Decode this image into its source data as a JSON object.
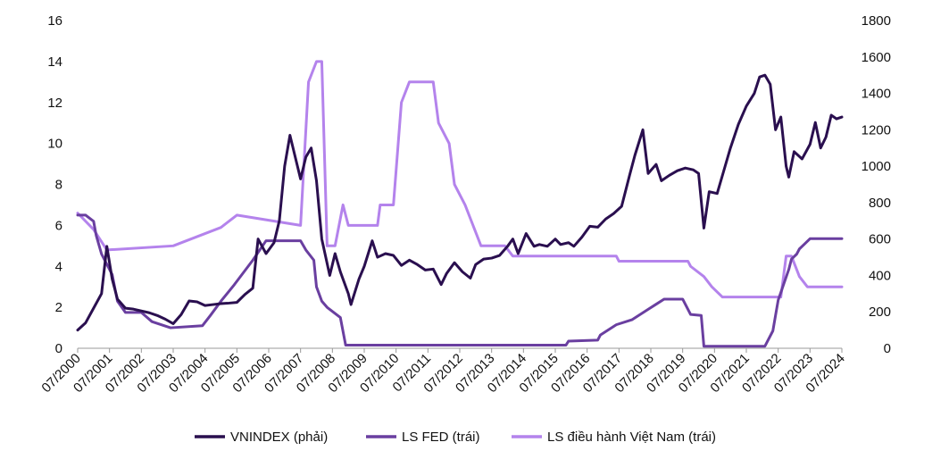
{
  "chart_data": {
    "type": "line",
    "title": "",
    "xlabel": "",
    "ylabel_left": "",
    "ylabel_right": "",
    "y_left_lim": [
      0,
      16
    ],
    "y_left_ticks": [
      "0",
      "2",
      "4",
      "6",
      "8",
      "10",
      "12",
      "14",
      "16"
    ],
    "y_right_lim": [
      0,
      1800
    ],
    "y_right_ticks": [
      "0",
      "200",
      "400",
      "600",
      "800",
      "1000",
      "1200",
      "1400",
      "1600",
      "1800"
    ],
    "x_ticks": [
      "07/2000",
      "07/2001",
      "07/2002",
      "07/2003",
      "07/2004",
      "07/2005",
      "07/2006",
      "07/2007",
      "07/2008",
      "07/2009",
      "07/2010",
      "07/2011",
      "07/2012",
      "07/2013",
      "07/2014",
      "07/2015",
      "07/2016",
      "07/2017",
      "07/2018",
      "07/2019",
      "07/2020",
      "07/2021",
      "07/2022",
      "07/2023",
      "07/2024"
    ],
    "x_range": [
      "2000-07",
      "2024-07"
    ],
    "grid": false,
    "legend_position": "bottom",
    "series": [
      {
        "name": "VNINDEX (phải)",
        "axis": "right",
        "color": "#2a0f4f",
        "points": [
          [
            "2000-07",
            100
          ],
          [
            "2000-10",
            140
          ],
          [
            "2001-01",
            220
          ],
          [
            "2001-04",
            300
          ],
          [
            "2001-06",
            560
          ],
          [
            "2001-08",
            380
          ],
          [
            "2001-10",
            270
          ],
          [
            "2002-01",
            220
          ],
          [
            "2002-04",
            215
          ],
          [
            "2002-07",
            205
          ],
          [
            "2002-10",
            195
          ],
          [
            "2003-01",
            180
          ],
          [
            "2003-04",
            160
          ],
          [
            "2003-07",
            135
          ],
          [
            "2003-10",
            185
          ],
          [
            "2004-01",
            260
          ],
          [
            "2004-04",
            255
          ],
          [
            "2004-07",
            235
          ],
          [
            "2004-10",
            240
          ],
          [
            "2005-01",
            245
          ],
          [
            "2005-04",
            248
          ],
          [
            "2005-07",
            252
          ],
          [
            "2005-10",
            295
          ],
          [
            "2006-01",
            330
          ],
          [
            "2006-03",
            600
          ],
          [
            "2006-06",
            520
          ],
          [
            "2006-09",
            580
          ],
          [
            "2006-11",
            700
          ],
          [
            "2007-01",
            1000
          ],
          [
            "2007-03",
            1170
          ],
          [
            "2007-05",
            1050
          ],
          [
            "2007-07",
            930
          ],
          [
            "2007-09",
            1050
          ],
          [
            "2007-11",
            1100
          ],
          [
            "2008-01",
            920
          ],
          [
            "2008-03",
            600
          ],
          [
            "2008-06",
            400
          ],
          [
            "2008-08",
            520
          ],
          [
            "2008-10",
            420
          ],
          [
            "2009-01",
            300
          ],
          [
            "2009-02",
            240
          ],
          [
            "2009-05",
            380
          ],
          [
            "2009-07",
            450
          ],
          [
            "2009-10",
            590
          ],
          [
            "2009-12",
            500
          ],
          [
            "2010-03",
            520
          ],
          [
            "2010-06",
            510
          ],
          [
            "2010-09",
            455
          ],
          [
            "2010-12",
            484
          ],
          [
            "2011-03",
            460
          ],
          [
            "2011-06",
            430
          ],
          [
            "2011-09",
            435
          ],
          [
            "2011-12",
            350
          ],
          [
            "2012-02",
            410
          ],
          [
            "2012-05",
            470
          ],
          [
            "2012-08",
            420
          ],
          [
            "2012-11",
            385
          ],
          [
            "2013-01",
            460
          ],
          [
            "2013-04",
            490
          ],
          [
            "2013-07",
            495
          ],
          [
            "2013-10",
            510
          ],
          [
            "2014-01",
            560
          ],
          [
            "2014-03",
            600
          ],
          [
            "2014-05",
            520
          ],
          [
            "2014-08",
            630
          ],
          [
            "2014-11",
            560
          ],
          [
            "2015-01",
            570
          ],
          [
            "2015-04",
            560
          ],
          [
            "2015-07",
            600
          ],
          [
            "2015-09",
            570
          ],
          [
            "2015-12",
            580
          ],
          [
            "2016-02",
            560
          ],
          [
            "2016-05",
            610
          ],
          [
            "2016-08",
            670
          ],
          [
            "2016-11",
            665
          ],
          [
            "2017-02",
            710
          ],
          [
            "2017-05",
            740
          ],
          [
            "2017-08",
            780
          ],
          [
            "2017-11",
            950
          ],
          [
            "2018-01",
            1060
          ],
          [
            "2018-04",
            1200
          ],
          [
            "2018-06",
            960
          ],
          [
            "2018-09",
            1010
          ],
          [
            "2018-11",
            920
          ],
          [
            "2019-02",
            950
          ],
          [
            "2019-05",
            975
          ],
          [
            "2019-08",
            990
          ],
          [
            "2019-11",
            980
          ],
          [
            "2020-01",
            960
          ],
          [
            "2020-03",
            660
          ],
          [
            "2020-05",
            860
          ],
          [
            "2020-08",
            850
          ],
          [
            "2020-11",
            1000
          ],
          [
            "2021-01",
            1100
          ],
          [
            "2021-04",
            1230
          ],
          [
            "2021-07",
            1330
          ],
          [
            "2021-10",
            1400
          ],
          [
            "2021-12",
            1490
          ],
          [
            "2022-02",
            1500
          ],
          [
            "2022-04",
            1450
          ],
          [
            "2022-06",
            1200
          ],
          [
            "2022-08",
            1270
          ],
          [
            "2022-10",
            1000
          ],
          [
            "2022-11",
            940
          ],
          [
            "2023-01",
            1080
          ],
          [
            "2023-04",
            1040
          ],
          [
            "2023-07",
            1120
          ],
          [
            "2023-09",
            1240
          ],
          [
            "2023-11",
            1100
          ],
          [
            "2024-01",
            1160
          ],
          [
            "2024-03",
            1280
          ],
          [
            "2024-05",
            1260
          ],
          [
            "2024-07",
            1270
          ]
        ]
      },
      {
        "name": "LS FED (trái)",
        "axis": "left",
        "color": "#6a3fa0",
        "points": [
          [
            "2000-07",
            6.5
          ],
          [
            "2000-10",
            6.5
          ],
          [
            "2001-01",
            6.2
          ],
          [
            "2001-02",
            5.5
          ],
          [
            "2001-04",
            4.6
          ],
          [
            "2001-06",
            4.1
          ],
          [
            "2001-08",
            3.6
          ],
          [
            "2001-10",
            2.3
          ],
          [
            "2002-01",
            1.75
          ],
          [
            "2002-07",
            1.75
          ],
          [
            "2002-11",
            1.3
          ],
          [
            "2003-06",
            1.0
          ],
          [
            "2004-06",
            1.1
          ],
          [
            "2004-09",
            1.6
          ],
          [
            "2005-01",
            2.3
          ],
          [
            "2005-06",
            3.1
          ],
          [
            "2006-01",
            4.3
          ],
          [
            "2006-06",
            5.25
          ],
          [
            "2007-07",
            5.25
          ],
          [
            "2007-09",
            4.8
          ],
          [
            "2007-12",
            4.3
          ],
          [
            "2008-01",
            3.0
          ],
          [
            "2008-03",
            2.3
          ],
          [
            "2008-05",
            2.0
          ],
          [
            "2008-10",
            1.5
          ],
          [
            "2008-12",
            0.15
          ],
          [
            "2015-11",
            0.15
          ],
          [
            "2015-12",
            0.35
          ],
          [
            "2016-11",
            0.4
          ],
          [
            "2016-12",
            0.65
          ],
          [
            "2017-03",
            0.9
          ],
          [
            "2017-06",
            1.15
          ],
          [
            "2017-12",
            1.4
          ],
          [
            "2018-03",
            1.65
          ],
          [
            "2018-06",
            1.9
          ],
          [
            "2018-09",
            2.15
          ],
          [
            "2018-12",
            2.4
          ],
          [
            "2019-07",
            2.4
          ],
          [
            "2019-08",
            2.15
          ],
          [
            "2019-10",
            1.65
          ],
          [
            "2020-02",
            1.6
          ],
          [
            "2020-03",
            0.1
          ],
          [
            "2022-02",
            0.1
          ],
          [
            "2022-03",
            0.35
          ],
          [
            "2022-05",
            0.85
          ],
          [
            "2022-06",
            1.6
          ],
          [
            "2022-07",
            2.35
          ],
          [
            "2022-09",
            3.1
          ],
          [
            "2022-11",
            3.85
          ],
          [
            "2022-12",
            4.35
          ],
          [
            "2023-02",
            4.6
          ],
          [
            "2023-03",
            4.85
          ],
          [
            "2023-05",
            5.1
          ],
          [
            "2023-07",
            5.35
          ],
          [
            "2024-07",
            5.35
          ]
        ]
      },
      {
        "name": "LS điều hành Việt Nam (trái)",
        "axis": "left",
        "color": "#b483ec",
        "points": [
          [
            "2000-07",
            6.6
          ],
          [
            "2001-01",
            5.8
          ],
          [
            "2001-06",
            4.8
          ],
          [
            "2003-07",
            5.0
          ],
          [
            "2005-01",
            5.9
          ],
          [
            "2005-07",
            6.5
          ],
          [
            "2007-07",
            6.0
          ],
          [
            "2007-10",
            13.0
          ],
          [
            "2008-01",
            14.0
          ],
          [
            "2008-03",
            14.0
          ],
          [
            "2008-05",
            5.0
          ],
          [
            "2008-08",
            5.0
          ],
          [
            "2008-11",
            7.0
          ],
          [
            "2009-01",
            6.0
          ],
          [
            "2009-12",
            6.0
          ],
          [
            "2010-01",
            7.0
          ],
          [
            "2010-06",
            7.0
          ],
          [
            "2010-09",
            12.0
          ],
          [
            "2010-12",
            13.0
          ],
          [
            "2011-09",
            13.0
          ],
          [
            "2011-11",
            11.0
          ],
          [
            "2012-03",
            10.0
          ],
          [
            "2012-05",
            8.0
          ],
          [
            "2012-09",
            7.0
          ],
          [
            "2012-12",
            6.0
          ],
          [
            "2013-03",
            5.0
          ],
          [
            "2013-12",
            5.0
          ],
          [
            "2014-03",
            4.5
          ],
          [
            "2017-06",
            4.5
          ],
          [
            "2017-07",
            4.25
          ],
          [
            "2019-09",
            4.25
          ],
          [
            "2019-10",
            4.0
          ],
          [
            "2020-03",
            3.5
          ],
          [
            "2020-06",
            3.0
          ],
          [
            "2020-10",
            2.5
          ],
          [
            "2022-08",
            2.5
          ],
          [
            "2022-10",
            4.5
          ],
          [
            "2022-12",
            4.5
          ],
          [
            "2023-03",
            3.5
          ],
          [
            "2023-06",
            3.0
          ],
          [
            "2024-07",
            3.0
          ]
        ]
      }
    ]
  }
}
